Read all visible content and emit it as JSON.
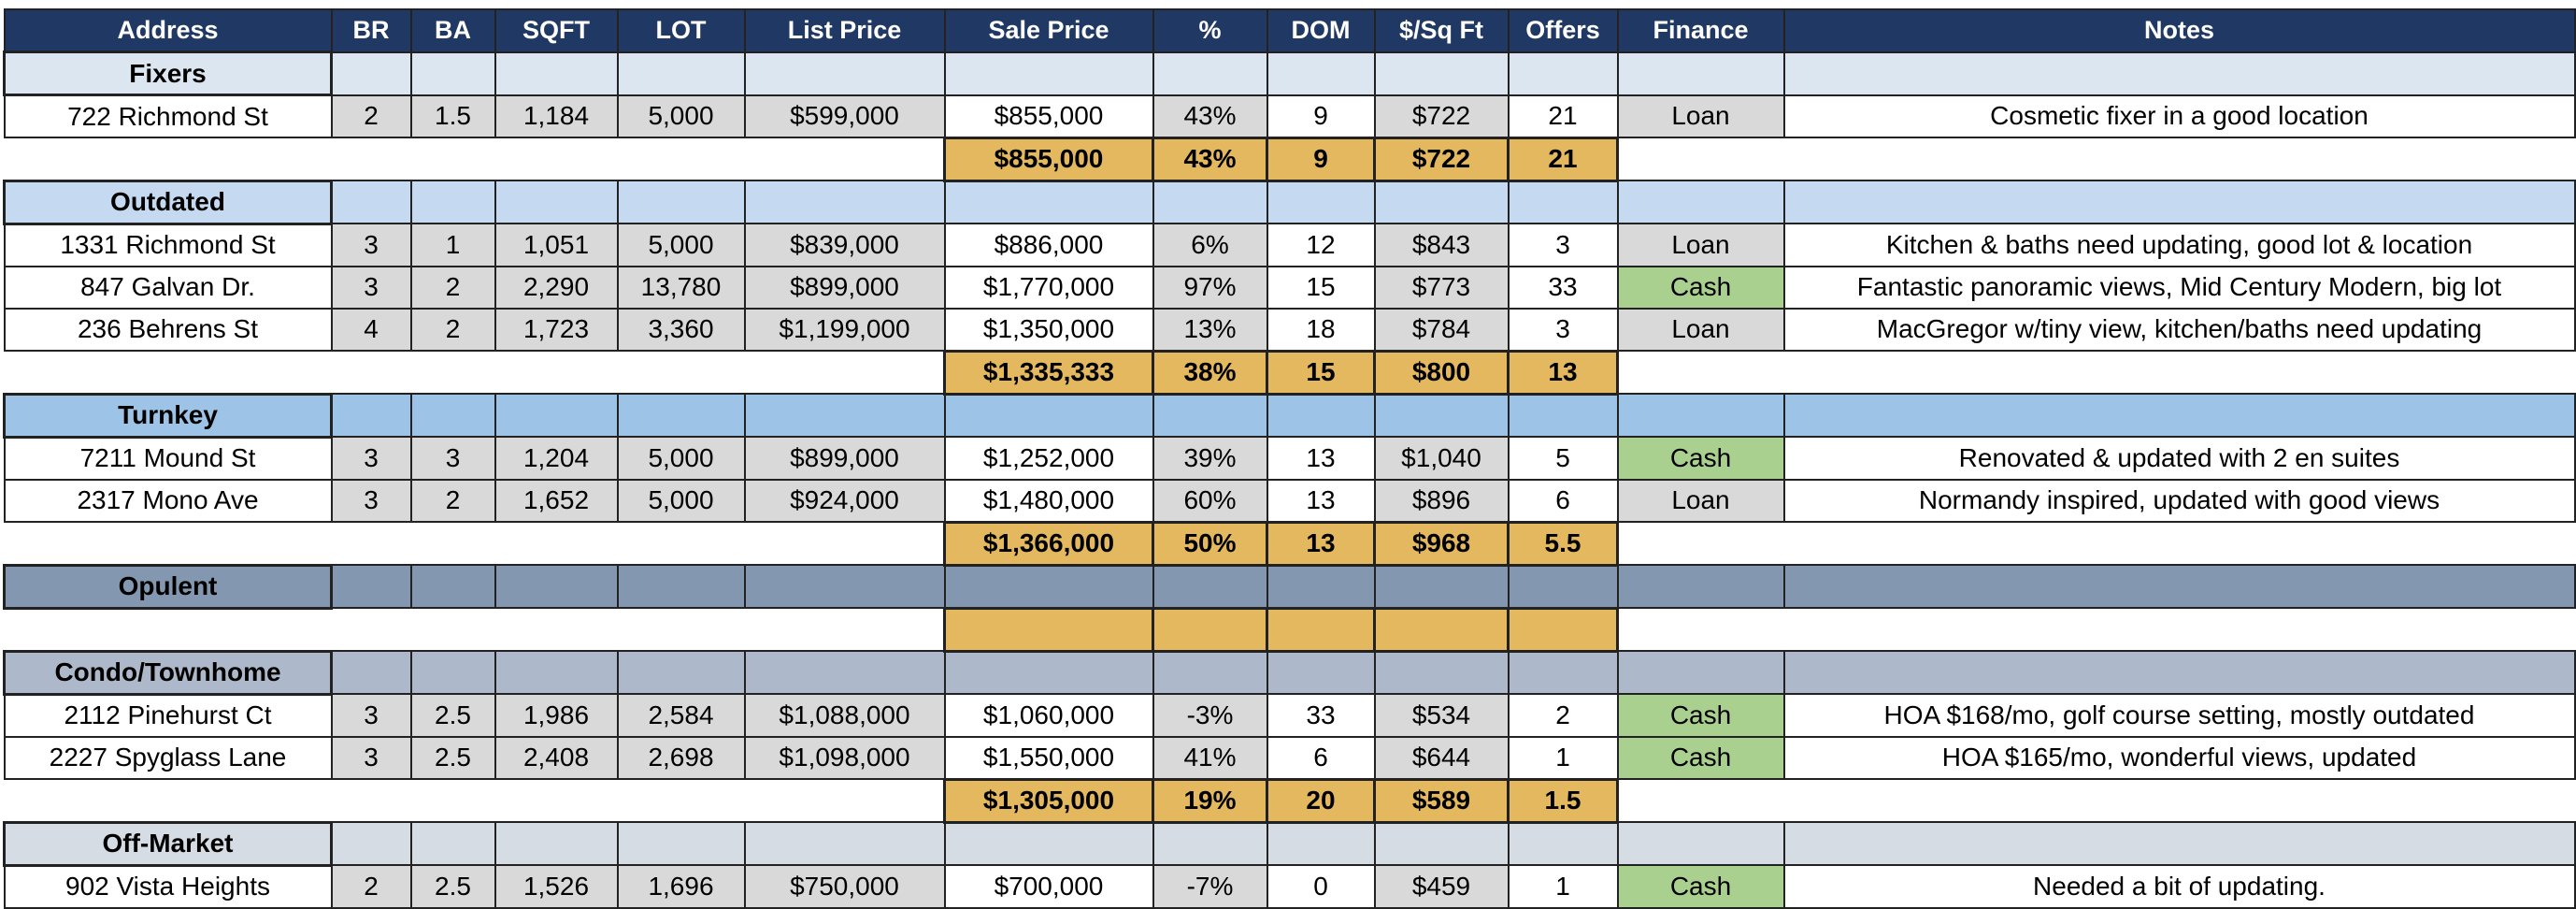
{
  "columns": [
    "Address",
    "BR",
    "BA",
    "SQFT",
    "LOT",
    "List Price",
    "Sale Price",
    "%",
    "DOM",
    "$/Sq Ft",
    "Offers",
    "Finance",
    "Notes"
  ],
  "header_color": "#1f3864",
  "grey": "#d9d9d9",
  "summary_color": "#e3b85e",
  "sections": [
    {
      "name": "Fixers",
      "color": "#dce6f1",
      "rows": [
        {
          "cells": [
            "722 Richmond St",
            "2",
            "1.5",
            "1,184",
            "5,000",
            "$599,000",
            "$855,000",
            "43%",
            "9",
            "$722",
            "21",
            "Loan",
            "Cosmetic fixer in a good location"
          ],
          "finance_color": "#d9d9d9"
        }
      ],
      "summary": [
        "$855,000",
        "43%",
        "9",
        "$722",
        "21"
      ]
    },
    {
      "name": "Outdated",
      "color": "#c5d9f1",
      "rows": [
        {
          "cells": [
            "1331 Richmond St",
            "3",
            "1",
            "1,051",
            "5,000",
            "$839,000",
            "$886,000",
            "6%",
            "12",
            "$843",
            "3",
            "Loan",
            "Kitchen & baths need updating, good lot & location"
          ],
          "finance_color": "#d9d9d9"
        },
        {
          "cells": [
            "847 Galvan Dr.",
            "3",
            "2",
            "2,290",
            "13,780",
            "$899,000",
            "$1,770,000",
            "97%",
            "15",
            "$773",
            "33",
            "Cash",
            "Fantastic panoramic views, Mid Century Modern, big lot"
          ],
          "finance_color": "#a9d08e"
        },
        {
          "cells": [
            "236 Behrens St",
            "4",
            "2",
            "1,723",
            "3,360",
            "$1,199,000",
            "$1,350,000",
            "13%",
            "18",
            "$784",
            "3",
            "Loan",
            "MacGregor w/tiny view, kitchen/baths need updating"
          ],
          "finance_color": "#d9d9d9"
        }
      ],
      "summary": [
        "$1,335,333",
        "38%",
        "15",
        "$800",
        "13"
      ]
    },
    {
      "name": "Turnkey",
      "color": "#9dc3e6",
      "rows": [
        {
          "cells": [
            "7211 Mound St",
            "3",
            "3",
            "1,204",
            "5,000",
            "$899,000",
            "$1,252,000",
            "39%",
            "13",
            "$1,040",
            "5",
            "Cash",
            "Renovated & updated with 2 en suites"
          ],
          "finance_color": "#a9d08e"
        },
        {
          "cells": [
            "2317 Mono Ave",
            "3",
            "2",
            "1,652",
            "5,000",
            "$924,000",
            "$1,480,000",
            "60%",
            "13",
            "$896",
            "6",
            "Loan",
            "Normandy inspired, updated with good views"
          ],
          "finance_color": "#d9d9d9"
        }
      ],
      "summary": [
        "$1,366,000",
        "50%",
        "13",
        "$968",
        "5.5"
      ]
    },
    {
      "name": "Opulent",
      "color": "#8497b0",
      "rows": [],
      "summary": []
    },
    {
      "name": "Condo/Townhome",
      "color": "#adb9ca",
      "rows": [
        {
          "cells": [
            "2112 Pinehurst Ct",
            "3",
            "2.5",
            "1,986",
            "2,584",
            "$1,088,000",
            "$1,060,000",
            "-3%",
            "33",
            "$534",
            "2",
            "Cash",
            "HOA $168/mo, golf course setting, mostly outdated"
          ],
          "finance_color": "#a9d08e"
        },
        {
          "cells": [
            "2227 Spyglass Lane",
            "3",
            "2.5",
            "2,408",
            "2,698",
            "$1,098,000",
            "$1,550,000",
            "41%",
            "6",
            "$644",
            "1",
            "Cash",
            "HOA $165/mo, wonderful views, updated"
          ],
          "finance_color": "#a9d08e"
        }
      ],
      "summary": [
        "$1,305,000",
        "19%",
        "20",
        "$589",
        "1.5"
      ]
    },
    {
      "name": "Off-Market",
      "color": "#d6dce4",
      "rows": [
        {
          "cells": [
            "902 Vista Heights",
            "2",
            "2.5",
            "1,526",
            "1,696",
            "$750,000",
            "$700,000",
            "-7%",
            "0",
            "$459",
            "1",
            "Cash",
            "Needed a bit of updating."
          ],
          "finance_color": "#a9d08e"
        }
      ]
    }
  ]
}
